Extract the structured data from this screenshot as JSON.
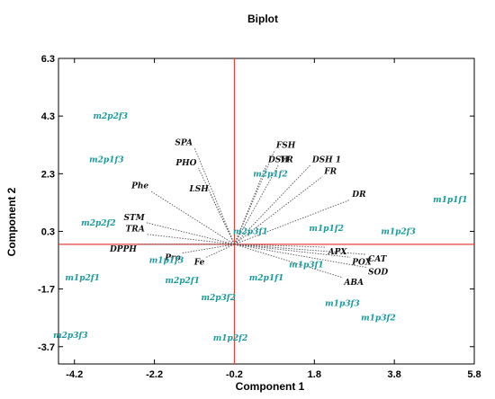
{
  "chart_data": {
    "type": "scatter",
    "title": "Biplot",
    "xlabel": "Component 1",
    "ylabel": "Component 2",
    "xlim": [
      -4.6,
      5.8
    ],
    "ylim": [
      -4.3,
      6.3
    ],
    "xticks": [
      "-4.2",
      "-2.2",
      "-0.2",
      "1.8",
      "3.8",
      "5.8"
    ],
    "yticks": [
      "6.3",
      "4.3",
      "2.3",
      "0.3",
      "-1.7",
      "-3.7"
    ],
    "reference_lines": {
      "x": -0.2,
      "y": -0.15,
      "color": "#e8413c"
    },
    "variables": [
      {
        "name": "SPA",
        "x": -1.2,
        "y": 3.2
      },
      {
        "name": "PHO",
        "x": -1.1,
        "y": 2.5
      },
      {
        "name": "Phe",
        "x": -2.3,
        "y": 1.7
      },
      {
        "name": "LSH",
        "x": -0.8,
        "y": 1.6
      },
      {
        "name": "STM",
        "x": -2.4,
        "y": 0.6
      },
      {
        "name": "TRA",
        "x": -2.4,
        "y": 0.2
      },
      {
        "name": "DPPH",
        "x": -2.6,
        "y": -0.15
      },
      {
        "name": "Pro",
        "x": -1.5,
        "y": -0.45
      },
      {
        "name": "Fe",
        "x": -0.9,
        "y": -0.6
      },
      {
        "name": "FSH",
        "x": 0.8,
        "y": 3.1
      },
      {
        "name": "DSH",
        "x": 0.6,
        "y": 2.6
      },
      {
        "name": "VR",
        "x": 0.9,
        "y": 2.6
      },
      {
        "name": "DSH 1",
        "x": 1.7,
        "y": 2.6
      },
      {
        "name": "FR",
        "x": 2.0,
        "y": 2.2
      },
      {
        "name": "DR",
        "x": 2.7,
        "y": 1.4
      },
      {
        "name": "APX",
        "x": 2.1,
        "y": -0.25
      },
      {
        "name": "POX",
        "x": 2.7,
        "y": -0.6
      },
      {
        "name": "CAT",
        "x": 3.1,
        "y": -0.5
      },
      {
        "name": "SOD",
        "x": 3.1,
        "y": -0.95
      },
      {
        "name": "ABA",
        "x": 2.5,
        "y": -1.3
      }
    ],
    "observations": [
      {
        "name": "m2p2f3",
        "x": -3.3,
        "y": 4.3
      },
      {
        "name": "m2p1f3",
        "x": -3.4,
        "y": 2.8
      },
      {
        "name": "m2p1f2",
        "x": 0.7,
        "y": 2.3
      },
      {
        "name": "m1p1f1",
        "x": 5.2,
        "y": 1.4
      },
      {
        "name": "m2p2f2",
        "x": -3.6,
        "y": 0.6
      },
      {
        "name": "m2p3f1",
        "x": 0.2,
        "y": 0.3
      },
      {
        "name": "m1p1f2",
        "x": 2.1,
        "y": 0.4
      },
      {
        "name": "m1p2f3",
        "x": 3.9,
        "y": 0.3
      },
      {
        "name": "m1p1f3",
        "x": -1.9,
        "y": -0.7
      },
      {
        "name": "m1p3f1",
        "x": 1.6,
        "y": -0.85
      },
      {
        "name": "m1p2f1",
        "x": -4.0,
        "y": -1.3
      },
      {
        "name": "m2p2f1",
        "x": -1.5,
        "y": -1.4
      },
      {
        "name": "m2p1f1",
        "x": 0.6,
        "y": -1.3
      },
      {
        "name": "m2p3f2",
        "x": -0.6,
        "y": -2.0
      },
      {
        "name": "m1p3f3",
        "x": 2.5,
        "y": -2.2
      },
      {
        "name": "m1p3f2",
        "x": 3.4,
        "y": -2.7
      },
      {
        "name": "m2p3f3",
        "x": -4.3,
        "y": -3.3
      },
      {
        "name": "m1p2f2",
        "x": -0.3,
        "y": -3.4
      }
    ]
  }
}
